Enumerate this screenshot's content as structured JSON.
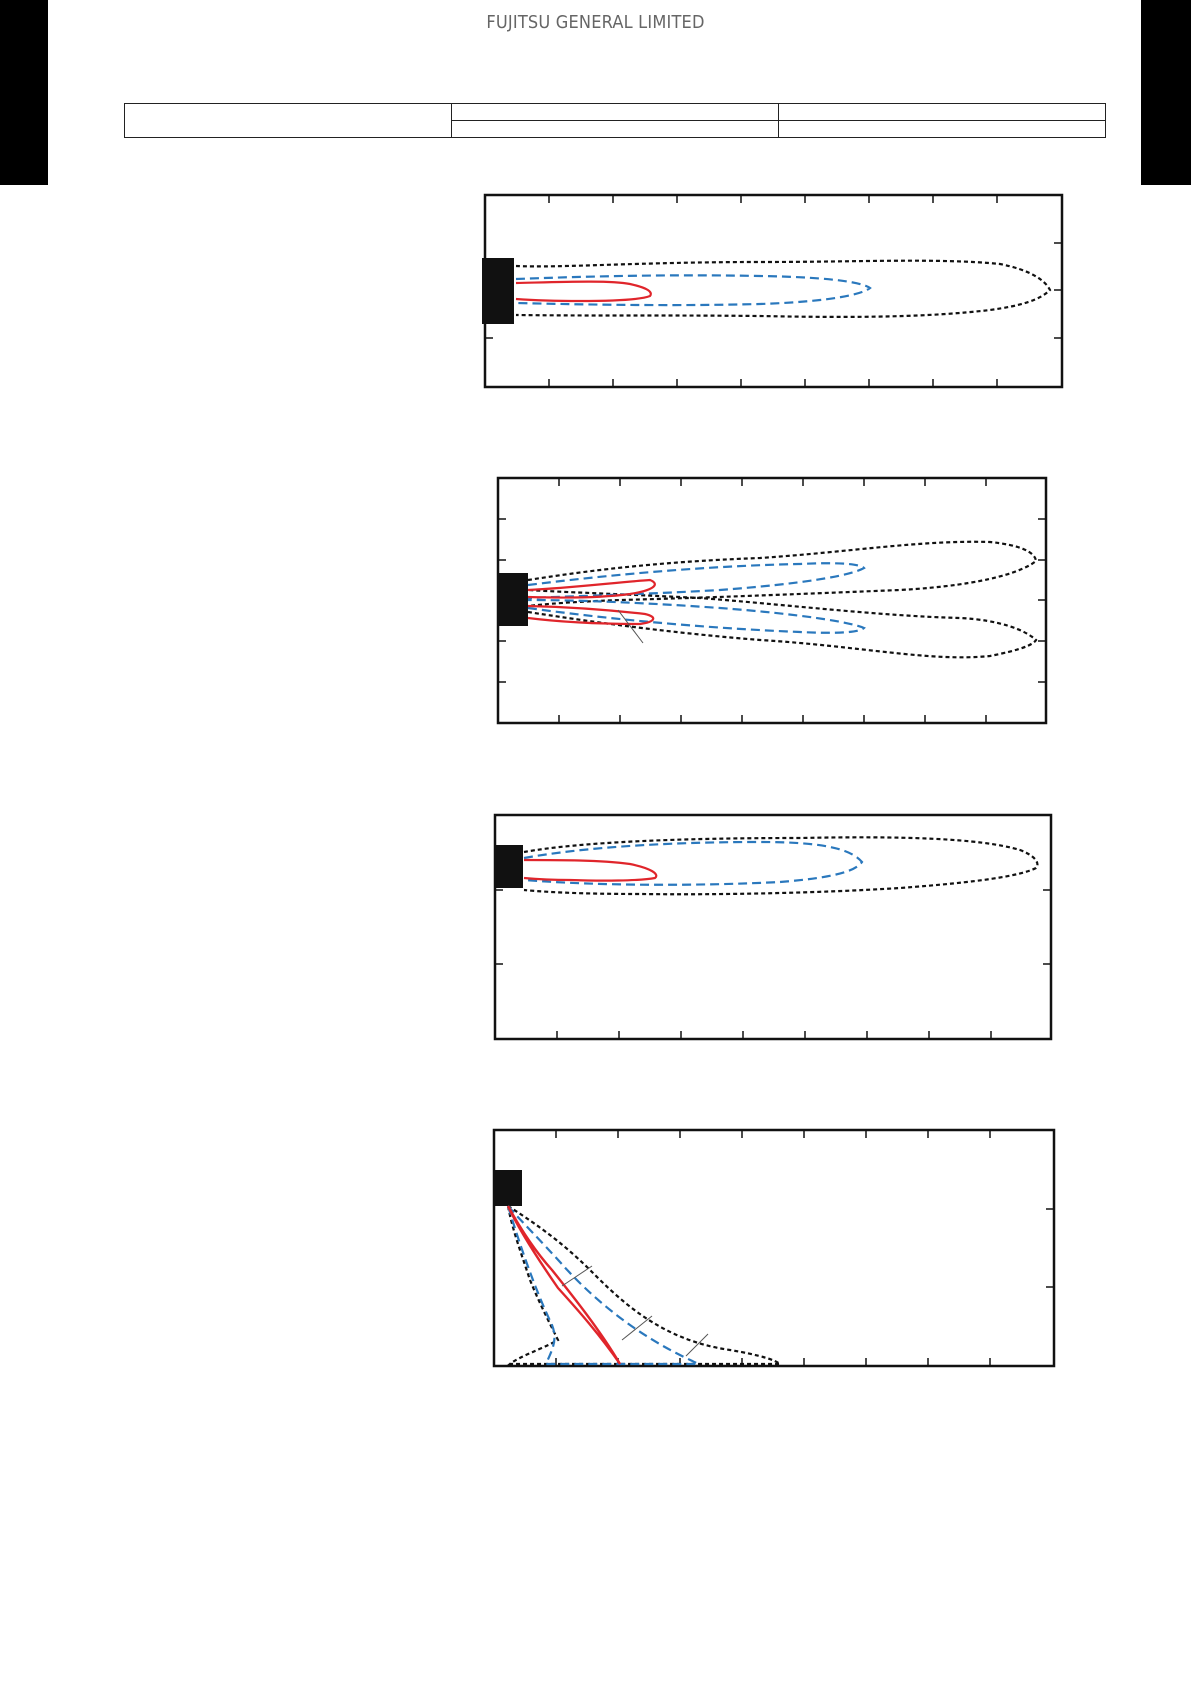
{
  "header": {
    "brand": "FUJITSU GENERAL LIMITED"
  },
  "spec_table": {
    "model_label": "",
    "rows": [
      [
        "",
        ""
      ],
      [
        "",
        ""
      ]
    ]
  },
  "legend_colors": {
    "inner": "#e0252b",
    "middle": "#2a78bd",
    "outer": "#111111"
  },
  "diagrams": [
    {
      "id": "diagram-1",
      "view": "top-horizontal"
    },
    {
      "id": "diagram-2",
      "view": "top-swing"
    },
    {
      "id": "diagram-3",
      "view": "side-horizontal"
    },
    {
      "id": "diagram-4",
      "view": "side-downward"
    }
  ]
}
